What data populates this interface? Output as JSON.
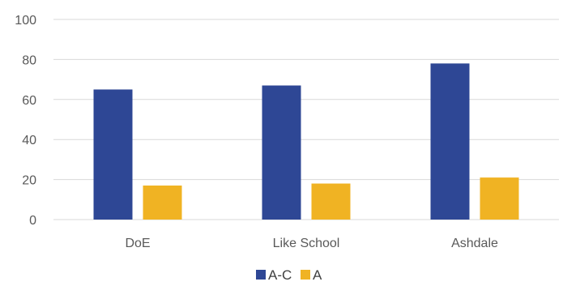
{
  "chart_data": {
    "type": "bar",
    "categories": [
      "DoE",
      "Like School",
      "Ashdale"
    ],
    "series": [
      {
        "name": "A-C",
        "values": [
          65,
          67,
          78
        ],
        "color": "#2e4795"
      },
      {
        "name": "A",
        "values": [
          17,
          18,
          21
        ],
        "color": "#f0b323"
      }
    ],
    "y_ticks": [
      "0",
      "20",
      "40",
      "60",
      "80",
      "100"
    ],
    "ylim": [
      0,
      100
    ],
    "grid": true,
    "legend": "bottom-center",
    "title": "",
    "xlabel": "",
    "ylabel": ""
  }
}
